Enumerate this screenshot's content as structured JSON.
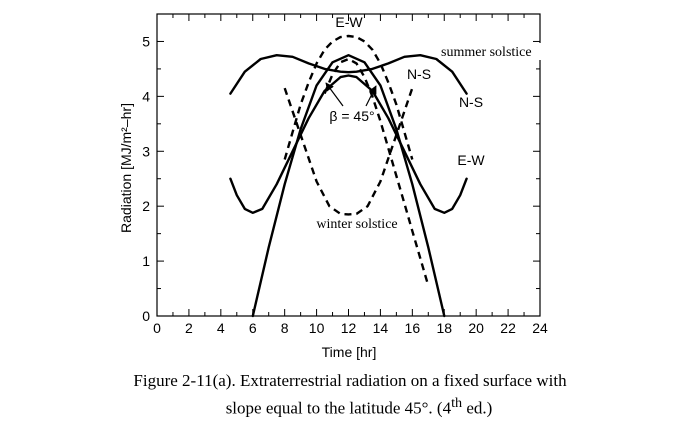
{
  "chart_data": {
    "type": "line",
    "xlabel": "Time [hr]",
    "ylabel": "Radiation [MJ/m²–hr]",
    "xlim": [
      0,
      24
    ],
    "ylim": [
      0,
      5.5
    ],
    "xticks": [
      "0",
      "2",
      "4",
      "6",
      "8",
      "10",
      "12",
      "14",
      "16",
      "18",
      "20",
      "22",
      "24"
    ],
    "yticks": [
      "0",
      "1",
      "2",
      "3",
      "4",
      "5"
    ],
    "grid": false,
    "series": [
      {
        "name": "E-W",
        "style": "solid",
        "x": [
          4.6,
          5.0,
          5.5,
          6.0,
          6.6,
          7.5,
          8.5,
          9.5,
          10.5,
          11.5,
          12.0,
          12.5,
          13.5,
          14.5,
          15.5,
          16.5,
          17.4,
          18.0,
          18.5,
          19.0,
          19.4
        ],
        "y": [
          2.5,
          2.2,
          1.95,
          1.88,
          1.95,
          2.4,
          3.0,
          3.6,
          4.1,
          4.35,
          4.38,
          4.35,
          4.1,
          3.6,
          3.0,
          2.4,
          1.95,
          1.88,
          1.95,
          2.2,
          2.5
        ]
      },
      {
        "name": "N-S",
        "style": "solid",
        "x": [
          4.6,
          5.5,
          6.5,
          7.5,
          8.5,
          9.5,
          10.5,
          11.5,
          12.0,
          12.5,
          13.5,
          14.5,
          15.5,
          16.5,
          17.5,
          18.5,
          19.4
        ],
        "y": [
          4.05,
          4.45,
          4.68,
          4.75,
          4.72,
          4.6,
          4.5,
          4.45,
          4.44,
          4.45,
          4.5,
          4.6,
          4.72,
          4.75,
          4.68,
          4.45,
          4.05
        ]
      },
      {
        "name": "β = 45°",
        "style": "solid",
        "x": [
          6.0,
          7.0,
          8.0,
          9.0,
          10.0,
          11.0,
          12.0,
          13.0,
          14.0,
          15.0,
          16.0,
          17.0,
          18.0
        ],
        "y": [
          0.0,
          1.25,
          2.4,
          3.4,
          4.2,
          4.62,
          4.75,
          4.62,
          4.2,
          3.4,
          2.4,
          1.25,
          0.0
        ]
      },
      {
        "name": "E-W",
        "style": "dashed",
        "x": [
          8.0,
          8.5,
          9.0,
          9.5,
          10.0,
          10.5,
          11.0,
          11.5,
          12.0,
          12.5,
          13.0,
          13.5,
          14.0,
          14.5,
          15.0,
          15.5,
          16.0
        ],
        "y": [
          2.85,
          3.35,
          3.85,
          4.25,
          4.6,
          4.85,
          5.0,
          5.08,
          5.1,
          5.08,
          5.0,
          4.85,
          4.6,
          4.25,
          3.85,
          3.35,
          2.85
        ]
      },
      {
        "name": "N-S",
        "style": "dashed",
        "x": [
          8.0,
          9.0,
          10.0,
          10.8,
          11.5,
          12.0,
          12.5,
          13.2,
          14.0,
          15.0,
          16.0
        ],
        "y": [
          4.15,
          3.3,
          2.45,
          2.0,
          1.86,
          1.85,
          1.86,
          2.0,
          2.45,
          3.3,
          4.15
        ]
      },
      {
        "name": "N-S",
        "style": "dashed",
        "x": [
          10.5,
          11.0,
          11.5,
          12.0,
          12.5,
          13.0,
          13.5,
          14.0,
          14.5,
          15.0,
          15.5,
          16.0,
          16.5,
          17.0
        ],
        "y": [
          4.05,
          4.4,
          4.62,
          4.68,
          4.6,
          4.35,
          4.0,
          3.55,
          3.05,
          2.55,
          2.05,
          1.55,
          1.05,
          0.55
        ]
      }
    ],
    "annotations": [
      {
        "text": "E-W",
        "font": "sans"
      },
      {
        "text": "summer solstice",
        "font": "serif"
      },
      {
        "text": "N-S",
        "font": "sans"
      },
      {
        "text": "N-S",
        "font": "sans"
      },
      {
        "text": "β = 45°",
        "font": "sans"
      },
      {
        "text": "E-W",
        "font": "sans"
      },
      {
        "text": "winter solstice",
        "font": "serif"
      }
    ]
  },
  "caption": {
    "line1": "Figure 2-11(a). Extraterrestrial radiation on a fixed surface with",
    "line2_before": "slope equal to the latitude 45°. (4",
    "line2_sup": "th",
    "line2_after": " ed.)"
  }
}
